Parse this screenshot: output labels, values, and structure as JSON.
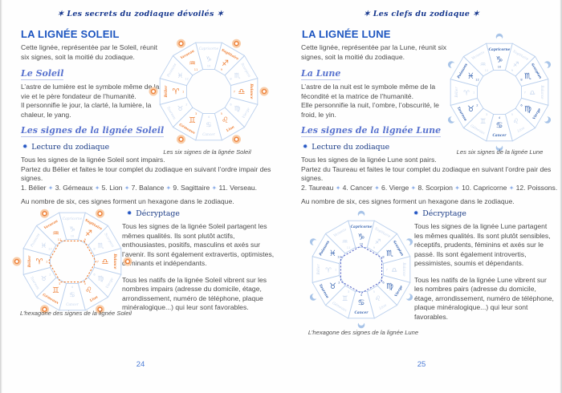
{
  "palette": {
    "navy": "#17388e",
    "title_blue": "#1d55c0",
    "section_blue": "#5a74cf",
    "body_text": "#4c4c4c",
    "page_number_blue": "#4c7cd6",
    "wheel_line": "#b9cfed",
    "wheel_pale": "#c6d6ee",
    "sun_orange": "#ee7f35",
    "sun_halo": "#f8cda9",
    "moon_blue": "#3c68b2",
    "moon_crescent": "#a8c4e8"
  },
  "glyphs": {
    "bullet": "✹",
    "separator": "✦",
    "header_star": "✶"
  },
  "zodiac": {
    "signs": [
      {
        "name": "Capricorne",
        "glyph": "♑",
        "number": "10",
        "lineage": "lune"
      },
      {
        "name": "Sagittaire",
        "glyph": "♐",
        "number": "9",
        "lineage": "soleil"
      },
      {
        "name": "Scorpion",
        "glyph": "♏",
        "number": "8",
        "lineage": "lune"
      },
      {
        "name": "Balance",
        "glyph": "♎",
        "number": "7",
        "lineage": "soleil"
      },
      {
        "name": "Vierge",
        "glyph": "♍",
        "number": "6",
        "lineage": "lune"
      },
      {
        "name": "Lion",
        "glyph": "♌",
        "number": "5",
        "lineage": "soleil"
      },
      {
        "name": "Cancer",
        "glyph": "♋",
        "number": "4",
        "lineage": "lune"
      },
      {
        "name": "Gémeaux",
        "glyph": "♊",
        "number": "3",
        "lineage": "soleil"
      },
      {
        "name": "Taureau",
        "glyph": "♉",
        "number": "2",
        "lineage": "lune"
      },
      {
        "name": "Bélier",
        "glyph": "♈",
        "number": "1",
        "lineage": "soleil"
      },
      {
        "name": "Poissons",
        "glyph": "♓",
        "number": "12",
        "lineage": "lune"
      },
      {
        "name": "Verseau",
        "glyph": "♒",
        "number": "11",
        "lineage": "soleil"
      }
    ]
  },
  "diagrams": [
    {
      "id": "sun-signs",
      "highlight": "soleil",
      "marker": "circle",
      "hexagon": false,
      "hex_color": "#ee7f35",
      "caption": "Les six signes de la lignée Soleil"
    },
    {
      "id": "sun-hexagon",
      "highlight": "soleil",
      "marker": "circle",
      "hexagon": true,
      "hex_color": "#ee7f35",
      "caption": "L’hexagone des signes de la lignée Soleil"
    },
    {
      "id": "moon-signs",
      "highlight": "lune",
      "marker": "crescent",
      "hexagon": false,
      "hex_color": "#5b68c8",
      "caption": "Les six signes de la lignée Lune"
    },
    {
      "id": "moon-hexagon",
      "highlight": "lune",
      "marker": "crescent",
      "hexagon": true,
      "hex_color": "#5b68c8",
      "caption": "L’hexagone des signes de la lignée Lune"
    }
  ],
  "left_page": {
    "header": "✶ Les secrets du zodiaque dévoilés ✶",
    "title": "LA LIGNÉE SOLEIL",
    "intro": "Cette lignée, représentée par le Soleil, réunit six signes, soit la moitié du zodiaque.",
    "section1_title": "Le Soleil",
    "section1_lines": [
      "L’astre de lumière est le symbole même de la vie et le père fondateur de l’humanité.",
      "Il personnifie le jour, la clarté, la lumière, la chaleur, le yang."
    ],
    "section2_title": "Les signes de la lignée Soleil",
    "reading_label": "Lecture du zodiaque",
    "reading_lines": [
      "Tous les signes de la lignée Soleil sont impairs.",
      "Partez du Bélier et faites le tour complet du zodiaque en suivant l’ordre impair des signes."
    ],
    "sequence": [
      "1. Bélier",
      "3. Gémeaux",
      "5. Lion",
      "7. Balance",
      "9. Sagittaire",
      "11. Verseau."
    ],
    "hexagon_note": "Au nombre de six, ces signes forment un hexagone dans le zodiaque.",
    "decrypt_label": "Décryptage",
    "decrypt_paragraphs": [
      "Tous les signes de la lignée Soleil partagent les mêmes qualités. Ils sont plutôt actifs, enthousiastes, positifs, masculins et axés sur l’avenir. Ils sont également extravertis, optimistes, dominants et indépendants.",
      "Tous les natifs de la lignée Soleil vibrent sur les nombres impairs (adresse du domicile, étage, arrondissement, numéro de téléphone, plaque minéralogique...) qui leur sont favorables."
    ],
    "page_number": "24"
  },
  "right_page": {
    "header": "✶ Les clefs du zodiaque ✶",
    "title": "LA LIGNÉE LUNE",
    "intro": "Cette lignée, représentée par la Lune, réunit six signes, soit la moitié du zodiaque.",
    "section1_title": "La Lune",
    "section1_lines": [
      "L’astre de la nuit est le symbole même de la fécondité et la matrice de l’humanité.",
      "Elle personnifie la nuit, l’ombre, l’obscurité, le froid, le yin."
    ],
    "section2_title": "Les signes de la lignée Lune",
    "reading_label": "Lecture du zodiaque",
    "reading_lines": [
      "Tous les signes de la lignée Lune sont pairs.",
      "Partez du Taureau et faites le tour complet du zodiaque en suivant l’ordre pair des signes."
    ],
    "sequence": [
      "2. Taureau",
      "4. Cancer",
      "6. Vierge",
      "8. Scorpion",
      "10. Capricorne",
      "12. Poissons."
    ],
    "hexagon_note": "Au nombre de six, ces signes forment un hexagone dans le zodiaque.",
    "decrypt_label": "Décryptage",
    "decrypt_paragraphs": [
      "Tous les signes de la lignée Lune partagent les mêmes qualités. Ils sont plutôt sensibles, réceptifs, prudents, féminins et axés sur le passé. Ils sont également introvertis, pessimistes, soumis et dépendants.",
      "Tous les natifs de la lignée Lune vibrent sur les nombres pairs (adresse du domicile, étage, arrondissement, numéro de téléphone, plaque minéralogique...) qui leur sont favorables."
    ],
    "page_number": "25"
  }
}
